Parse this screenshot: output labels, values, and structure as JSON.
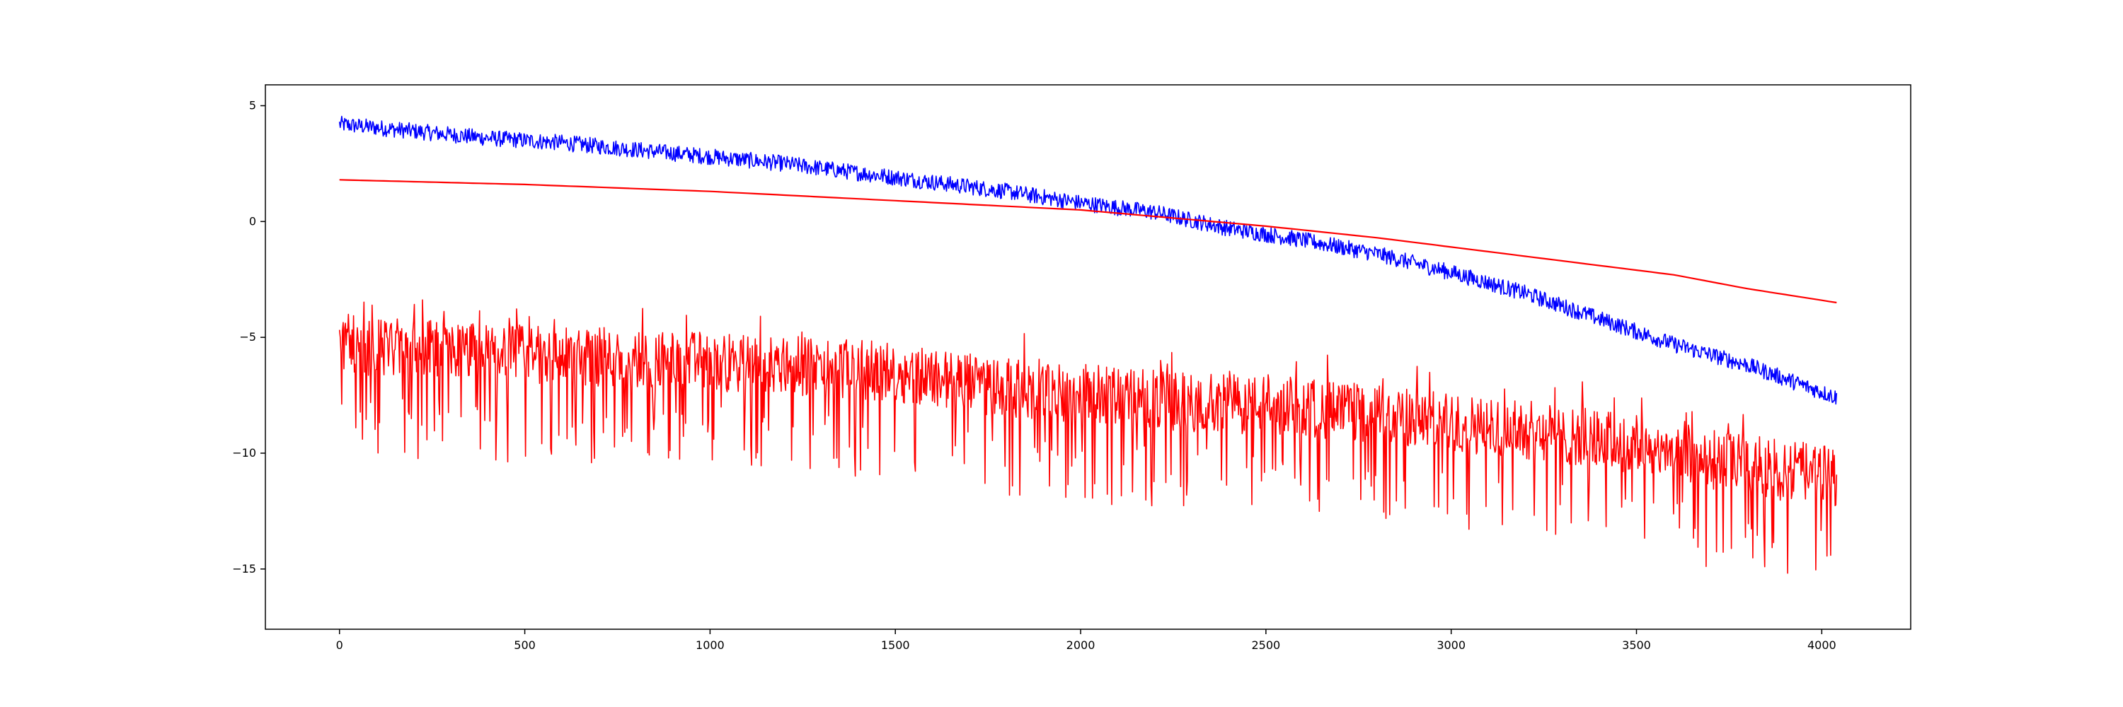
{
  "chart_data": {
    "type": "line",
    "title": "",
    "xlabel": "",
    "ylabel": "",
    "xlim": [
      -200,
      4240
    ],
    "ylim": [
      -17.6,
      5.9
    ],
    "grid": false,
    "legend": "none",
    "x_ticks": [
      0,
      500,
      1000,
      1500,
      2000,
      2500,
      3000,
      3500,
      4000
    ],
    "y_ticks": [
      5,
      0,
      -5,
      -10,
      -15
    ],
    "x_tick_labels": [
      "0",
      "500",
      "1000",
      "1500",
      "2000",
      "2500",
      "3000",
      "3500",
      "4000"
    ],
    "y_tick_labels": [
      "5",
      "0",
      "−5",
      "−10",
      "−15"
    ],
    "series": [
      {
        "color": "#0000ff",
        "style": "noisy",
        "x": [
          0,
          200,
          400,
          600,
          800,
          1000,
          1200,
          1400,
          1600,
          1800,
          2000,
          2200,
          2400,
          2600,
          2800,
          3000,
          3200,
          3400,
          3600,
          3800,
          4040
        ],
        "y": [
          4.2,
          3.9,
          3.6,
          3.4,
          3.1,
          2.8,
          2.5,
          2.1,
          1.7,
          1.3,
          0.8,
          0.4,
          -0.3,
          -0.8,
          -1.4,
          -2.2,
          -3.1,
          -4.2,
          -5.3,
          -6.2,
          -7.6
        ],
        "noise_amplitude": 0.35
      },
      {
        "color": "#ff0000",
        "style": "smooth",
        "x": [
          0,
          500,
          1000,
          1500,
          2000,
          2500,
          2800,
          3000,
          3200,
          3400,
          3600,
          3800,
          4040
        ],
        "y": [
          1.8,
          1.6,
          1.3,
          0.9,
          0.5,
          -0.2,
          -0.7,
          -1.1,
          -1.5,
          -1.9,
          -2.3,
          -2.9,
          -3.5
        ]
      },
      {
        "color": "#ff0000",
        "style": "noisy",
        "x": [
          0,
          300,
          600,
          900,
          1200,
          1500,
          1800,
          2000,
          2300,
          2600,
          2900,
          3200,
          3500,
          3800,
          4040
        ],
        "y": [
          -5.3,
          -5.6,
          -5.8,
          -6.0,
          -6.2,
          -6.5,
          -7.2,
          -7.4,
          -7.8,
          -8.0,
          -8.5,
          -9.0,
          -9.6,
          -10.5,
          -11.0
        ],
        "noise_amplitude": 1.6
      }
    ]
  }
}
